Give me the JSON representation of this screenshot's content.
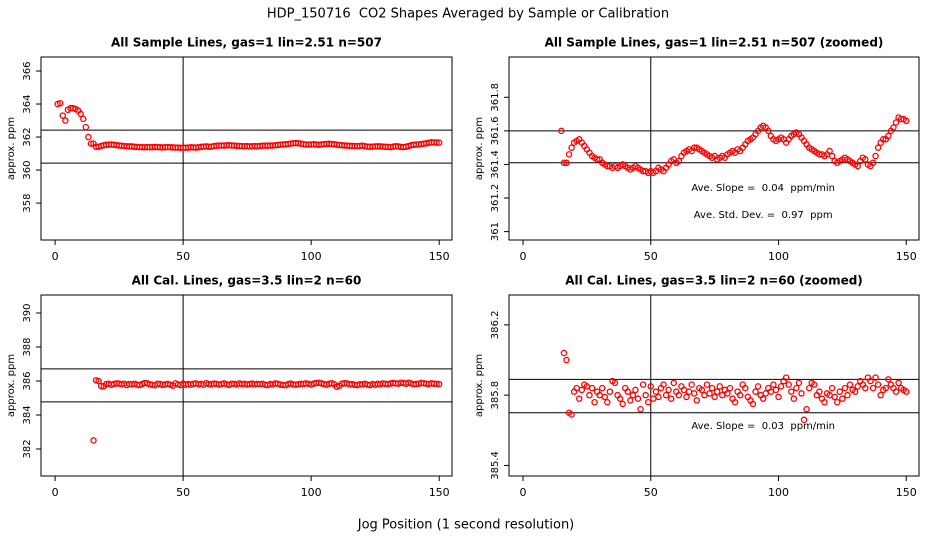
{
  "title": "HDP_150716  CO2 Shapes Averaged by Sample or Calibration",
  "xlabel": "Jog Position (1 second resolution)",
  "chart_data": [
    {
      "type": "scatter",
      "title": "All Sample Lines, gas=1 lin=2.51 n=507",
      "ylabel": "approx. ppm",
      "color": "#ff0000",
      "xlim": [
        -5.5,
        155
      ],
      "xticks": [
        0,
        50,
        100,
        150
      ],
      "ylim": [
        355.76,
        366.85
      ],
      "yticks": [
        358,
        360,
        362,
        364,
        366
      ],
      "hlines": [
        360.42,
        362.42
      ],
      "vline": 50,
      "x": [
        1,
        2,
        3,
        4,
        5,
        6,
        7,
        8,
        9,
        10,
        11,
        12,
        13,
        14,
        15,
        16,
        17,
        18,
        19,
        20,
        21,
        22,
        23,
        24,
        25,
        26,
        27,
        28,
        29,
        30,
        31,
        32,
        33,
        34,
        35,
        36,
        37,
        38,
        39,
        40,
        41,
        42,
        43,
        44,
        45,
        46,
        47,
        48,
        49,
        50,
        51,
        52,
        53,
        54,
        55,
        56,
        57,
        58,
        59,
        60,
        61,
        62,
        63,
        64,
        65,
        66,
        67,
        68,
        69,
        70,
        71,
        72,
        73,
        74,
        75,
        76,
        77,
        78,
        79,
        80,
        81,
        82,
        83,
        84,
        85,
        86,
        87,
        88,
        89,
        90,
        91,
        92,
        93,
        94,
        95,
        96,
        97,
        98,
        99,
        100,
        101,
        102,
        103,
        104,
        105,
        106,
        107,
        108,
        109,
        110,
        111,
        112,
        113,
        114,
        115,
        116,
        117,
        118,
        119,
        120,
        121,
        122,
        123,
        124,
        125,
        126,
        127,
        128,
        129,
        130,
        131,
        132,
        133,
        134,
        135,
        136,
        137,
        138,
        139,
        140,
        141,
        142,
        143,
        144,
        145,
        146,
        147,
        148,
        149,
        150
      ],
      "values": [
        364.0,
        364.05,
        363.3,
        363.0,
        363.65,
        363.75,
        363.75,
        363.7,
        363.6,
        363.4,
        363.1,
        362.6,
        362.0,
        361.6,
        361.6,
        361.41,
        361.41,
        361.46,
        361.5,
        361.53,
        361.54,
        361.55,
        361.53,
        361.51,
        361.49,
        361.47,
        361.45,
        361.44,
        361.43,
        361.43,
        361.41,
        361.4,
        361.39,
        361.39,
        361.38,
        361.39,
        361.38,
        361.39,
        361.4,
        361.39,
        361.38,
        361.37,
        361.38,
        361.39,
        361.38,
        361.37,
        361.36,
        361.36,
        361.35,
        361.36,
        361.35,
        361.36,
        361.38,
        361.37,
        361.36,
        361.38,
        361.4,
        361.42,
        361.43,
        361.41,
        361.42,
        361.45,
        361.47,
        361.48,
        361.49,
        361.48,
        361.5,
        361.5,
        361.49,
        361.48,
        361.47,
        361.46,
        361.45,
        361.44,
        361.45,
        361.43,
        361.44,
        361.45,
        361.44,
        361.46,
        361.47,
        361.48,
        361.47,
        361.49,
        361.48,
        361.5,
        361.52,
        361.54,
        361.55,
        361.56,
        361.58,
        361.6,
        361.62,
        361.63,
        361.62,
        361.6,
        361.57,
        361.55,
        361.54,
        361.55,
        361.56,
        361.55,
        361.53,
        361.55,
        361.57,
        361.58,
        361.59,
        361.58,
        361.56,
        361.54,
        361.52,
        361.5,
        361.49,
        361.48,
        361.47,
        361.46,
        361.46,
        361.45,
        361.46,
        361.48,
        361.45,
        361.42,
        361.41,
        361.42,
        361.43,
        361.44,
        361.43,
        361.42,
        361.41,
        361.4,
        361.39,
        361.42,
        361.44,
        361.43,
        361.4,
        361.39,
        361.41,
        361.45,
        361.5,
        361.53,
        361.55,
        361.55,
        361.57,
        361.6,
        361.62,
        361.65,
        361.68,
        361.67,
        361.67,
        361.66
      ]
    },
    {
      "type": "scatter",
      "title": "All Sample Lines, gas=1 lin=2.51 n=507 (zoomed)",
      "ylabel": "approx. ppm",
      "color": "#ff0000",
      "xlim": [
        -5.5,
        155
      ],
      "xticks": [
        0,
        50,
        100,
        150
      ],
      "ylim": [
        360.95,
        362.04
      ],
      "yticks": [
        361.0,
        361.2,
        361.4,
        361.6,
        361.8
      ],
      "hlines": [
        361.41,
        361.6
      ],
      "vline": 50,
      "annotations": [
        "Ave. Slope =  0.04  ppm/min",
        "Ave. Std. Dev. =  0.97  ppm"
      ],
      "x": [
        15,
        16,
        17,
        18,
        19,
        20,
        21,
        22,
        23,
        24,
        25,
        26,
        27,
        28,
        29,
        30,
        31,
        32,
        33,
        34,
        35,
        36,
        37,
        38,
        39,
        40,
        41,
        42,
        43,
        44,
        45,
        46,
        47,
        48,
        49,
        50,
        51,
        52,
        53,
        54,
        55,
        56,
        57,
        58,
        59,
        60,
        61,
        62,
        63,
        64,
        65,
        66,
        67,
        68,
        69,
        70,
        71,
        72,
        73,
        74,
        75,
        76,
        77,
        78,
        79,
        80,
        81,
        82,
        83,
        84,
        85,
        86,
        87,
        88,
        89,
        90,
        91,
        92,
        93,
        94,
        95,
        96,
        97,
        98,
        99,
        100,
        101,
        102,
        103,
        104,
        105,
        106,
        107,
        108,
        109,
        110,
        111,
        112,
        113,
        114,
        115,
        116,
        117,
        118,
        119,
        120,
        121,
        122,
        123,
        124,
        125,
        126,
        127,
        128,
        129,
        130,
        131,
        132,
        133,
        134,
        135,
        136,
        137,
        138,
        139,
        140,
        141,
        142,
        143,
        144,
        145,
        146,
        147,
        148,
        149,
        150
      ],
      "values": [
        361.6,
        361.41,
        361.41,
        361.46,
        361.5,
        361.53,
        361.54,
        361.55,
        361.53,
        361.51,
        361.49,
        361.47,
        361.45,
        361.44,
        361.43,
        361.43,
        361.41,
        361.4,
        361.39,
        361.39,
        361.38,
        361.39,
        361.38,
        361.39,
        361.4,
        361.39,
        361.38,
        361.37,
        361.38,
        361.39,
        361.38,
        361.37,
        361.36,
        361.36,
        361.35,
        361.36,
        361.35,
        361.36,
        361.38,
        361.37,
        361.36,
        361.38,
        361.4,
        361.42,
        361.43,
        361.41,
        361.42,
        361.45,
        361.47,
        361.48,
        361.49,
        361.48,
        361.5,
        361.5,
        361.49,
        361.48,
        361.47,
        361.46,
        361.45,
        361.44,
        361.45,
        361.43,
        361.44,
        361.45,
        361.44,
        361.46,
        361.47,
        361.48,
        361.47,
        361.49,
        361.48,
        361.5,
        361.52,
        361.54,
        361.55,
        361.56,
        361.58,
        361.6,
        361.62,
        361.63,
        361.62,
        361.6,
        361.57,
        361.55,
        361.54,
        361.55,
        361.56,
        361.55,
        361.53,
        361.55,
        361.57,
        361.58,
        361.59,
        361.58,
        361.56,
        361.54,
        361.52,
        361.5,
        361.49,
        361.48,
        361.47,
        361.46,
        361.46,
        361.45,
        361.46,
        361.48,
        361.45,
        361.42,
        361.41,
        361.42,
        361.43,
        361.44,
        361.43,
        361.42,
        361.41,
        361.4,
        361.39,
        361.42,
        361.44,
        361.43,
        361.4,
        361.39,
        361.41,
        361.45,
        361.5,
        361.53,
        361.55,
        361.55,
        361.57,
        361.6,
        361.62,
        361.65,
        361.68,
        361.67,
        361.67,
        361.66
      ]
    },
    {
      "type": "scatter",
      "title": "All Cal. Lines, gas=3.5 lin=2 n=60",
      "ylabel": "approx. ppm",
      "color": "#ff0000",
      "xlim": [
        -5.5,
        155
      ],
      "xticks": [
        0,
        50,
        100,
        150
      ],
      "ylim": [
        380.41,
        391.06
      ],
      "yticks": [
        382,
        384,
        386,
        388,
        390
      ],
      "hlines": [
        384.77,
        386.71
      ],
      "vline": 50,
      "x": [
        15,
        16,
        17,
        18,
        19,
        20,
        21,
        22,
        23,
        24,
        25,
        26,
        27,
        28,
        29,
        30,
        31,
        32,
        33,
        34,
        35,
        36,
        37,
        38,
        39,
        40,
        41,
        42,
        43,
        44,
        45,
        46,
        47,
        48,
        49,
        50,
        51,
        52,
        53,
        54,
        55,
        56,
        57,
        58,
        59,
        60,
        61,
        62,
        63,
        64,
        65,
        66,
        67,
        68,
        69,
        70,
        71,
        72,
        73,
        74,
        75,
        76,
        77,
        78,
        79,
        80,
        81,
        82,
        83,
        84,
        85,
        86,
        87,
        88,
        89,
        90,
        91,
        92,
        93,
        94,
        95,
        96,
        97,
        98,
        99,
        100,
        101,
        102,
        103,
        104,
        105,
        106,
        107,
        108,
        109,
        110,
        111,
        112,
        113,
        114,
        115,
        116,
        117,
        118,
        119,
        120,
        121,
        122,
        123,
        124,
        125,
        126,
        127,
        128,
        129,
        130,
        131,
        132,
        133,
        134,
        135,
        136,
        137,
        138,
        139,
        140,
        141,
        142,
        143,
        144,
        145,
        146,
        147,
        148,
        149,
        150
      ],
      "values": [
        382.5,
        386.04,
        386.0,
        385.7,
        385.69,
        385.82,
        385.84,
        385.78,
        385.83,
        385.86,
        385.85,
        385.8,
        385.84,
        385.76,
        385.82,
        385.8,
        385.84,
        385.79,
        385.76,
        385.82,
        385.88,
        385.87,
        385.8,
        385.78,
        385.75,
        385.84,
        385.82,
        385.77,
        385.8,
        385.83,
        385.78,
        385.72,
        385.86,
        385.8,
        385.76,
        385.85,
        385.78,
        385.82,
        385.79,
        385.84,
        385.86,
        385.8,
        385.83,
        385.78,
        385.87,
        385.82,
        385.8,
        385.85,
        385.83,
        385.79,
        385.82,
        385.86,
        385.81,
        385.77,
        385.84,
        385.83,
        385.8,
        385.86,
        385.81,
        385.84,
        385.79,
        385.82,
        385.85,
        385.8,
        385.83,
        385.81,
        385.84,
        385.78,
        385.76,
        385.82,
        385.8,
        385.86,
        385.84,
        385.79,
        385.77,
        385.75,
        385.82,
        385.85,
        385.8,
        385.78,
        385.81,
        385.84,
        385.82,
        385.86,
        385.83,
        385.79,
        385.85,
        385.88,
        385.9,
        385.86,
        385.82,
        385.78,
        385.84,
        385.87,
        385.81,
        385.66,
        385.72,
        385.84,
        385.87,
        385.86,
        385.8,
        385.82,
        385.78,
        385.76,
        385.81,
        385.8,
        385.84,
        385.79,
        385.76,
        385.82,
        385.78,
        385.84,
        385.8,
        385.86,
        385.83,
        385.82,
        385.85,
        385.88,
        385.86,
        385.84,
        385.9,
        385.88,
        385.84,
        385.9,
        385.86,
        385.8,
        385.83,
        385.84,
        385.89,
        385.86,
        385.84,
        385.82,
        385.87,
        385.84,
        385.83,
        385.82
      ]
    },
    {
      "type": "scatter",
      "title": "All Cal. Lines, gas=3.5 lin=2 n=60 (zoomed)",
      "ylabel": "approx. ppm",
      "color": "#ff0000",
      "xlim": [
        -5.5,
        155
      ],
      "xticks": [
        0,
        50,
        100,
        150
      ],
      "ylim": [
        385.34,
        386.37
      ],
      "yticks": [
        385.4,
        385.8,
        386.2
      ],
      "hlines": [
        385.7,
        385.89
      ],
      "vline": 50,
      "annotations": [
        "Ave. Slope =  0.03  ppm/min"
      ],
      "x": [
        16,
        17,
        18,
        19,
        20,
        21,
        22,
        23,
        24,
        25,
        26,
        27,
        28,
        29,
        30,
        31,
        32,
        33,
        34,
        35,
        36,
        37,
        38,
        39,
        40,
        41,
        42,
        43,
        44,
        45,
        46,
        47,
        48,
        49,
        50,
        51,
        52,
        53,
        54,
        55,
        56,
        57,
        58,
        59,
        60,
        61,
        62,
        63,
        64,
        65,
        66,
        67,
        68,
        69,
        70,
        71,
        72,
        73,
        74,
        75,
        76,
        77,
        78,
        79,
        80,
        81,
        82,
        83,
        84,
        85,
        86,
        87,
        88,
        89,
        90,
        91,
        92,
        93,
        94,
        95,
        96,
        97,
        98,
        99,
        100,
        101,
        102,
        103,
        104,
        105,
        106,
        107,
        108,
        109,
        110,
        111,
        112,
        113,
        114,
        115,
        116,
        117,
        118,
        119,
        120,
        121,
        122,
        123,
        124,
        125,
        126,
        127,
        128,
        129,
        130,
        131,
        132,
        133,
        134,
        135,
        136,
        137,
        138,
        139,
        140,
        141,
        142,
        143,
        144,
        145,
        146,
        147,
        148,
        149,
        150
      ],
      "values": [
        386.04,
        386.0,
        385.7,
        385.69,
        385.82,
        385.84,
        385.78,
        385.83,
        385.86,
        385.85,
        385.8,
        385.84,
        385.76,
        385.82,
        385.8,
        385.84,
        385.79,
        385.76,
        385.82,
        385.88,
        385.87,
        385.8,
        385.78,
        385.75,
        385.84,
        385.82,
        385.77,
        385.8,
        385.83,
        385.78,
        385.72,
        385.86,
        385.8,
        385.76,
        385.85,
        385.78,
        385.82,
        385.79,
        385.84,
        385.86,
        385.8,
        385.83,
        385.78,
        385.87,
        385.82,
        385.8,
        385.85,
        385.83,
        385.79,
        385.82,
        385.86,
        385.81,
        385.77,
        385.84,
        385.83,
        385.8,
        385.86,
        385.81,
        385.84,
        385.79,
        385.82,
        385.85,
        385.8,
        385.83,
        385.81,
        385.84,
        385.78,
        385.76,
        385.82,
        385.8,
        385.86,
        385.84,
        385.79,
        385.77,
        385.75,
        385.82,
        385.85,
        385.8,
        385.78,
        385.81,
        385.84,
        385.82,
        385.86,
        385.83,
        385.79,
        385.85,
        385.88,
        385.9,
        385.86,
        385.82,
        385.78,
        385.84,
        385.87,
        385.81,
        385.66,
        385.72,
        385.84,
        385.87,
        385.86,
        385.8,
        385.82,
        385.78,
        385.76,
        385.81,
        385.8,
        385.84,
        385.79,
        385.76,
        385.82,
        385.78,
        385.84,
        385.8,
        385.86,
        385.83,
        385.82,
        385.85,
        385.88,
        385.86,
        385.84,
        385.9,
        385.88,
        385.84,
        385.9,
        385.86,
        385.8,
        385.83,
        385.84,
        385.89,
        385.86,
        385.84,
        385.82,
        385.87,
        385.84,
        385.83,
        385.82
      ]
    }
  ]
}
